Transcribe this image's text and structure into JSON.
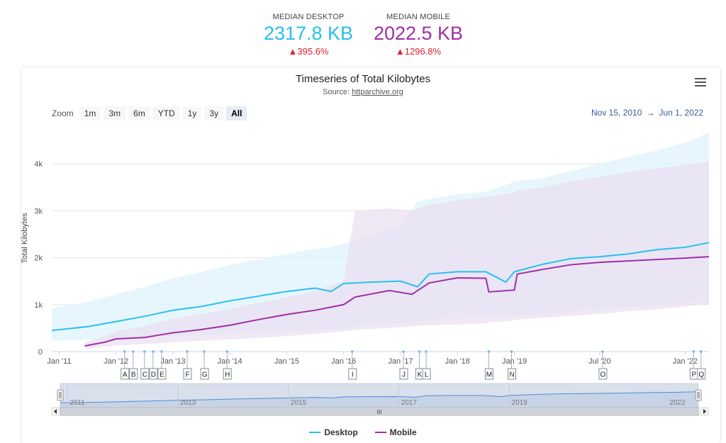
{
  "kpis": {
    "desktop": {
      "label": "MEDIAN DESKTOP",
      "value": "2317.8 KB",
      "change": "395.6%",
      "color": "#27c0ee"
    },
    "mobile": {
      "label": "MEDIAN MOBILE",
      "value": "2022.5 KB",
      "change": "1296.8%",
      "color": "#a02ea6"
    }
  },
  "toolbar": {
    "zoom_label": "Zoom",
    "zoom_buttons": [
      "1m",
      "3m",
      "6m",
      "YTD",
      "1y",
      "3y",
      "All"
    ],
    "active_zoom": "All",
    "range_from": "Nov 15, 2010",
    "range_arrow": "→",
    "range_to": "Jun 1, 2022"
  },
  "chart_data": {
    "type": "area",
    "title": "Timeseries of Total Kilobytes",
    "subtitle_prefix": "Source: ",
    "subtitle_link": "httparchive.org",
    "ylabel": "Total Kilobytes",
    "ylim": [
      0,
      4800
    ],
    "xlim": [
      2010.87,
      2022.42
    ],
    "y_ticks": [
      {
        "v": 0,
        "label": "0"
      },
      {
        "v": 1000,
        "label": "1k"
      },
      {
        "v": 2000,
        "label": "2k"
      },
      {
        "v": 3000,
        "label": "3k"
      },
      {
        "v": 4000,
        "label": "4k"
      }
    ],
    "x_ticks": [
      {
        "v": 2011.0,
        "label": "Jan '11"
      },
      {
        "v": 2012.0,
        "label": "Jan '12"
      },
      {
        "v": 2013.0,
        "label": "Jan '13"
      },
      {
        "v": 2014.0,
        "label": "Jan '14"
      },
      {
        "v": 2015.0,
        "label": "Jan '15"
      },
      {
        "v": 2016.0,
        "label": "Jan '16"
      },
      {
        "v": 2017.0,
        "label": "Jan '17"
      },
      {
        "v": 2018.0,
        "label": "Jan '18"
      },
      {
        "v": 2019.0,
        "label": "Jan '19"
      },
      {
        "v": 2020.5,
        "label": "Jul '20"
      },
      {
        "v": 2022.0,
        "label": "Jan '22"
      }
    ],
    "series": [
      {
        "name": "Desktop",
        "color": "#27c0ee",
        "band_color": "#dff3fc",
        "x": [
          2010.87,
          2011.5,
          2012.0,
          2012.5,
          2013.0,
          2013.5,
          2014.0,
          2014.5,
          2015.0,
          2015.5,
          2015.78,
          2016.0,
          2016.5,
          2017.0,
          2017.3,
          2017.5,
          2018.0,
          2018.5,
          2018.85,
          2019.0,
          2019.5,
          2020.0,
          2020.5,
          2021.0,
          2021.5,
          2022.0,
          2022.42
        ],
        "values": [
          450,
          530,
          640,
          750,
          880,
          960,
          1080,
          1180,
          1280,
          1350,
          1280,
          1450,
          1480,
          1500,
          1380,
          1650,
          1700,
          1700,
          1480,
          1700,
          1860,
          1980,
          2020,
          2080,
          2170,
          2220,
          2320
        ],
        "upper": [
          920,
          1060,
          1220,
          1380,
          1560,
          1700,
          1840,
          1960,
          2080,
          2190,
          2230,
          2300,
          2500,
          2700,
          3200,
          3250,
          3350,
          3400,
          3550,
          3620,
          3700,
          3850,
          4000,
          4150,
          4280,
          4450,
          4660
        ],
        "lower": [
          230,
          250,
          270,
          300,
          320,
          350,
          380,
          400,
          420,
          460,
          480,
          500,
          560,
          600,
          640,
          680,
          700,
          720,
          740,
          760,
          800,
          850,
          900,
          940,
          980,
          1020,
          1060
        ]
      },
      {
        "name": "Mobile",
        "color": "#a02ea6",
        "band_color": "#e9def0",
        "x": [
          2011.45,
          2011.8,
          2012.0,
          2012.5,
          2012.75,
          2013.0,
          2013.5,
          2014.0,
          2014.5,
          2015.0,
          2015.5,
          2016.0,
          2016.2,
          2016.8,
          2017.2,
          2017.5,
          2018.0,
          2018.5,
          2018.55,
          2019.0,
          2019.05,
          2019.5,
          2020.0,
          2020.5,
          2021.0,
          2021.5,
          2022.0,
          2022.42
        ],
        "values": [
          120,
          200,
          270,
          300,
          350,
          400,
          470,
          560,
          680,
          790,
          880,
          1000,
          1160,
          1300,
          1220,
          1460,
          1570,
          1560,
          1270,
          1310,
          1650,
          1750,
          1850,
          1900,
          1930,
          1960,
          1990,
          2020
        ],
        "upper": [
          200,
          320,
          430,
          540,
          620,
          700,
          800,
          910,
          1030,
          1160,
          1290,
          1500,
          3000,
          3050,
          3000,
          3120,
          3220,
          3300,
          3300,
          3380,
          3430,
          3500,
          3620,
          3720,
          3820,
          3900,
          3980,
          4050
        ],
        "lower": [
          60,
          100,
          130,
          160,
          180,
          200,
          230,
          260,
          290,
          330,
          380,
          430,
          460,
          500,
          540,
          560,
          580,
          600,
          620,
          660,
          680,
          720,
          760,
          800,
          860,
          900,
          960,
          1010
        ]
      }
    ],
    "annotations": [
      {
        "label": "A",
        "x": 2012.15
      },
      {
        "label": "B",
        "x": 2012.3
      },
      {
        "label": "C",
        "x": 2012.5
      },
      {
        "label": "D",
        "x": 2012.65
      },
      {
        "label": "E",
        "x": 2012.8
      },
      {
        "label": "F",
        "x": 2013.25
      },
      {
        "label": "G",
        "x": 2013.55
      },
      {
        "label": "H",
        "x": 2013.95
      },
      {
        "label": "I",
        "x": 2016.15
      },
      {
        "label": "J",
        "x": 2017.05
      },
      {
        "label": "K",
        "x": 2017.33
      },
      {
        "label": "L",
        "x": 2017.45
      },
      {
        "label": "M",
        "x": 2018.55
      },
      {
        "label": "N",
        "x": 2018.95
      },
      {
        "label": "O",
        "x": 2020.55
      },
      {
        "label": "P",
        "x": 2022.15
      },
      {
        "label": "Q",
        "x": 2022.28
      }
    ],
    "navigator_years": [
      "2011",
      "2013",
      "2015",
      "2017",
      "2019",
      "2022"
    ],
    "scrollbar_grip": "III",
    "legend": [
      "Desktop",
      "Mobile"
    ]
  }
}
